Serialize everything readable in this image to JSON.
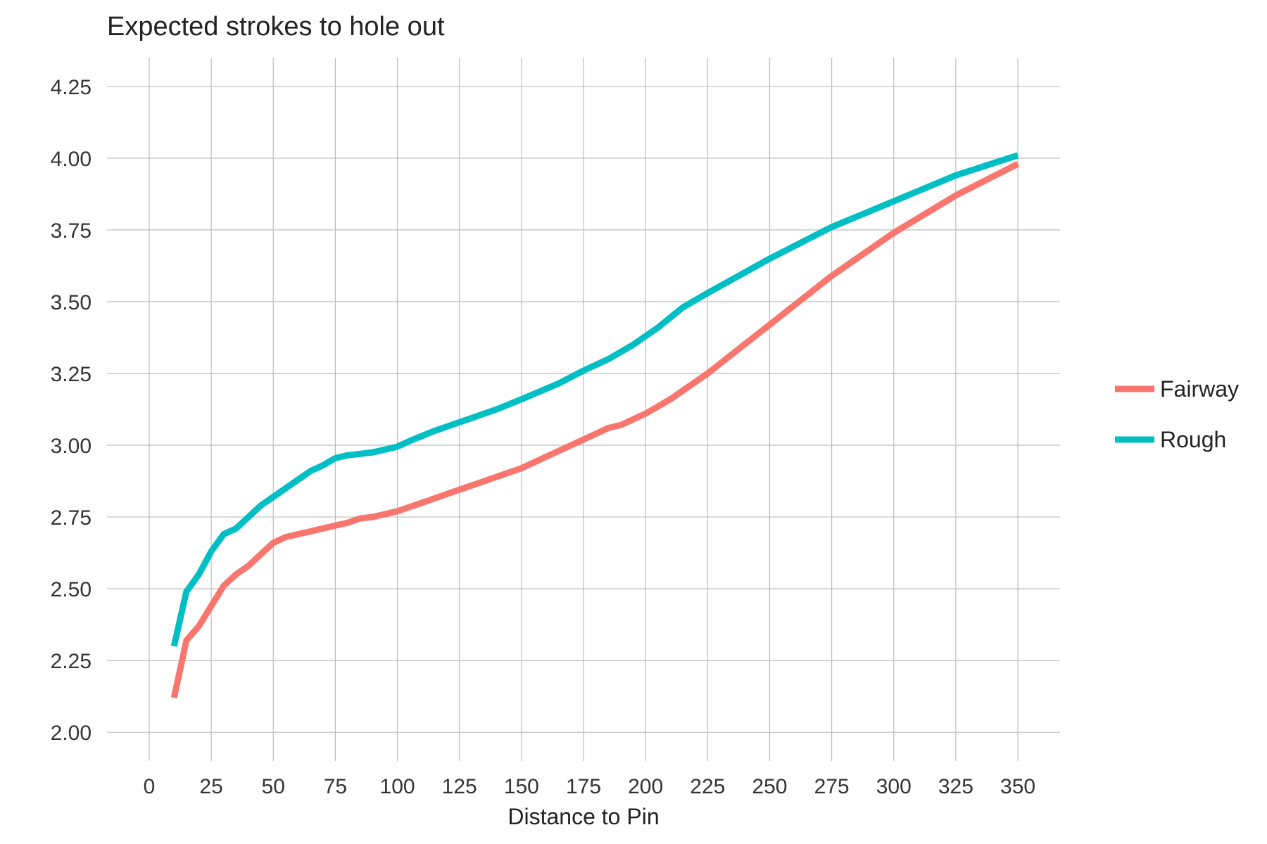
{
  "chart_data": {
    "type": "line",
    "title": "Expected strokes to hole out",
    "xlabel": "Distance to Pin",
    "ylabel": "",
    "xlim": [
      -17,
      367
    ],
    "ylim": [
      1.9,
      4.35
    ],
    "xticks": [
      0,
      25,
      50,
      75,
      100,
      125,
      150,
      175,
      200,
      225,
      250,
      275,
      300,
      325,
      350
    ],
    "yticks": [
      2.0,
      2.25,
      2.5,
      2.75,
      3.0,
      3.25,
      3.5,
      3.75,
      4.0,
      4.25
    ],
    "ytick_labels": [
      "2.00",
      "2.25",
      "2.50",
      "2.75",
      "3.00",
      "3.25",
      "3.50",
      "3.75",
      "4.00",
      "4.25"
    ],
    "grid": true,
    "legend_position": "right",
    "series": [
      {
        "name": "Fairway",
        "color": "#F8766D",
        "x": [
          10,
          15,
          20,
          25,
          30,
          35,
          40,
          45,
          50,
          55,
          60,
          65,
          70,
          75,
          80,
          85,
          90,
          100,
          110,
          120,
          130,
          140,
          150,
          160,
          165,
          175,
          185,
          190,
          200,
          210,
          215,
          225,
          250,
          275,
          300,
          325,
          350
        ],
        "y": [
          2.12,
          2.32,
          2.37,
          2.44,
          2.51,
          2.55,
          2.58,
          2.62,
          2.66,
          2.68,
          2.69,
          2.7,
          2.71,
          2.72,
          2.73,
          2.745,
          2.75,
          2.77,
          2.8,
          2.83,
          2.86,
          2.89,
          2.92,
          2.96,
          2.98,
          3.02,
          3.06,
          3.07,
          3.11,
          3.16,
          3.19,
          3.25,
          3.42,
          3.59,
          3.74,
          3.87,
          3.98
        ]
      },
      {
        "name": "Rough",
        "color": "#00BFC4",
        "x": [
          10,
          15,
          20,
          25,
          30,
          35,
          40,
          45,
          50,
          55,
          60,
          65,
          70,
          75,
          80,
          85,
          90,
          100,
          105,
          115,
          125,
          140,
          150,
          165,
          175,
          185,
          195,
          205,
          215,
          225,
          250,
          275,
          300,
          325,
          350
        ],
        "y": [
          2.3,
          2.49,
          2.55,
          2.63,
          2.69,
          2.71,
          2.75,
          2.79,
          2.82,
          2.85,
          2.88,
          2.91,
          2.93,
          2.955,
          2.965,
          2.97,
          2.975,
          2.995,
          3.015,
          3.05,
          3.08,
          3.125,
          3.16,
          3.215,
          3.26,
          3.3,
          3.35,
          3.41,
          3.48,
          3.53,
          3.65,
          3.76,
          3.85,
          3.94,
          4.01
        ]
      }
    ]
  }
}
